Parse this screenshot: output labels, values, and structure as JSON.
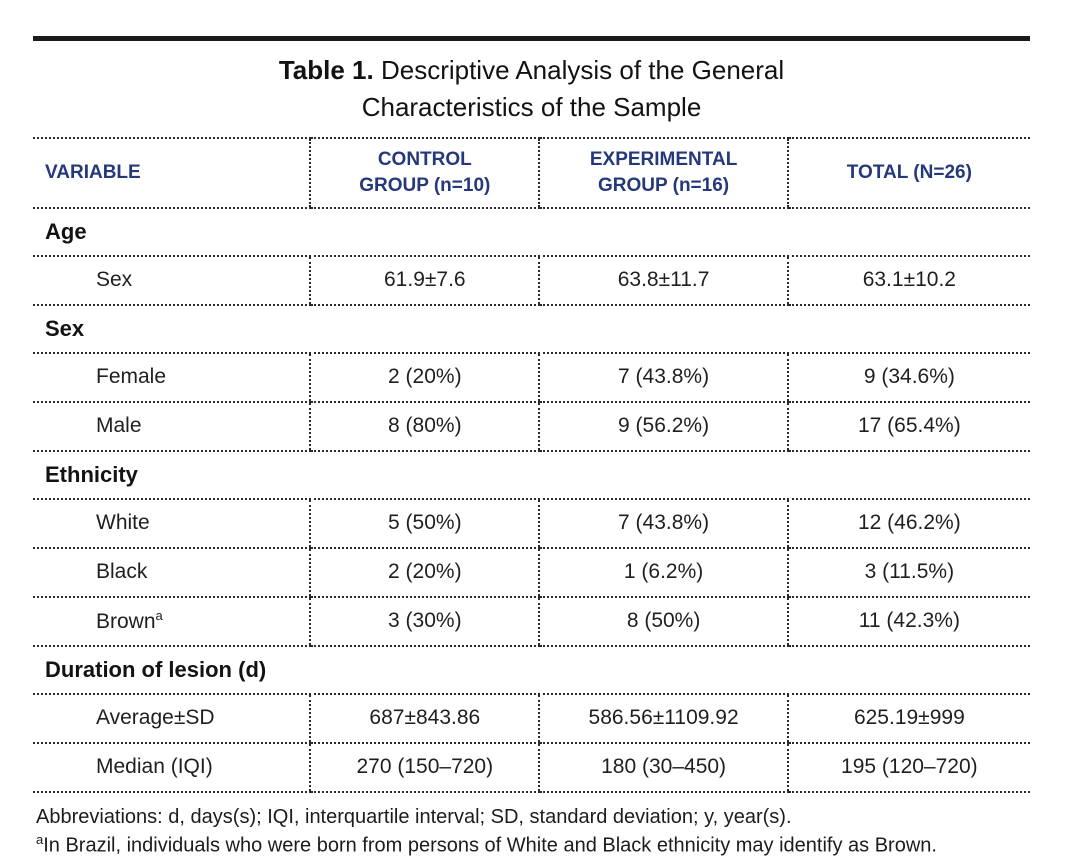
{
  "title": {
    "label": "Table 1.",
    "line1": "Descriptive Analysis of the General",
    "line2": "Characteristics of the Sample"
  },
  "colors": {
    "header_text": "#24387b",
    "body_text": "#1f1f1f",
    "rule": "#1b1b1b"
  },
  "table": {
    "header": [
      {
        "lines": [
          "VARIABLE",
          ""
        ]
      },
      {
        "lines": [
          "CONTROL",
          "GROUP (n=10)"
        ]
      },
      {
        "lines": [
          "EXPERIMENTAL",
          "GROUP (n=16)"
        ]
      },
      {
        "lines": [
          "TOTAL (N=26)",
          ""
        ]
      }
    ],
    "sections": [
      {
        "title": "Age",
        "rows": [
          {
            "label": "Sex",
            "sup": "",
            "values": [
              "61.9±7.6",
              "63.8±11.7",
              "63.1±10.2"
            ]
          }
        ]
      },
      {
        "title": "Sex",
        "rows": [
          {
            "label": "Female",
            "sup": "",
            "values": [
              "2 (20%)",
              "7 (43.8%)",
              "9 (34.6%)"
            ]
          },
          {
            "label": "Male",
            "sup": "",
            "values": [
              "8 (80%)",
              "9 (56.2%)",
              "17 (65.4%)"
            ]
          }
        ]
      },
      {
        "title": "Ethnicity",
        "rows": [
          {
            "label": "White",
            "sup": "",
            "values": [
              "5 (50%)",
              "7 (43.8%)",
              "12 (46.2%)"
            ]
          },
          {
            "label": "Black",
            "sup": "",
            "values": [
              "2 (20%)",
              "1 (6.2%)",
              "3 (11.5%)"
            ]
          },
          {
            "label": "Brown",
            "sup": "a",
            "values": [
              "3 (30%)",
              "8 (50%)",
              "11 (42.3%)"
            ]
          }
        ]
      },
      {
        "title": "Duration of lesion (d)",
        "rows": [
          {
            "label": "Average±SD",
            "sup": "",
            "values": [
              "687±843.86",
              "586.56±1109.92",
              "625.19±999"
            ]
          },
          {
            "label": "Median (IQI)",
            "sup": "",
            "values": [
              "270 (150–720)",
              "180 (30–450)",
              "195 (120–720)"
            ]
          }
        ]
      }
    ]
  },
  "footnotes": {
    "abbreviations": "Abbreviations: d, days(s); IQI, interquartile interval; SD, standard deviation; y, year(s).",
    "note_marker": "a",
    "note_text": "In Brazil, individuals who were born from persons of White and Black ethnicity may identify as Brown."
  }
}
